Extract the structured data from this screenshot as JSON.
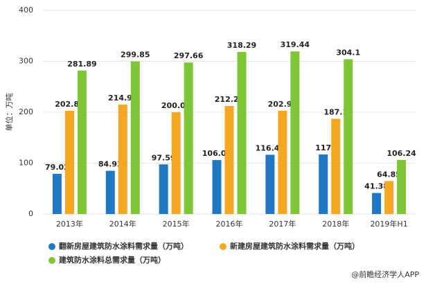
{
  "chart_data": {
    "type": "bar",
    "y_label": "单位：万吨",
    "categories": [
      "2013年",
      "2014年",
      "2015年",
      "2016年",
      "2017年",
      "2018年",
      "2019年H1"
    ],
    "series": [
      {
        "name": "翻新房屋建筑防水涂料需求量（万吨）",
        "color": "#1f78c1",
        "values": [
          79.02,
          84.93,
          97.59,
          106.04,
          116.47,
          117,
          41.38
        ]
      },
      {
        "name": "新建房屋建筑防水涂料需求量（万吨）",
        "color": "#f5a623",
        "values": [
          202.87,
          214.92,
          200.08,
          212.26,
          202.97,
          187.1,
          64.85
        ]
      },
      {
        "name": "建筑防水涂料总需求量（万吨）",
        "color": "#7ec636",
        "values": [
          281.89,
          299.85,
          297.66,
          318.29,
          319.44,
          304.1,
          106.24
        ]
      }
    ],
    "ylim": [
      0,
      400
    ],
    "yticks": [
      0,
      100,
      200,
      300,
      400
    ],
    "grid": true,
    "footer": "@前瞻经济学人APP"
  }
}
